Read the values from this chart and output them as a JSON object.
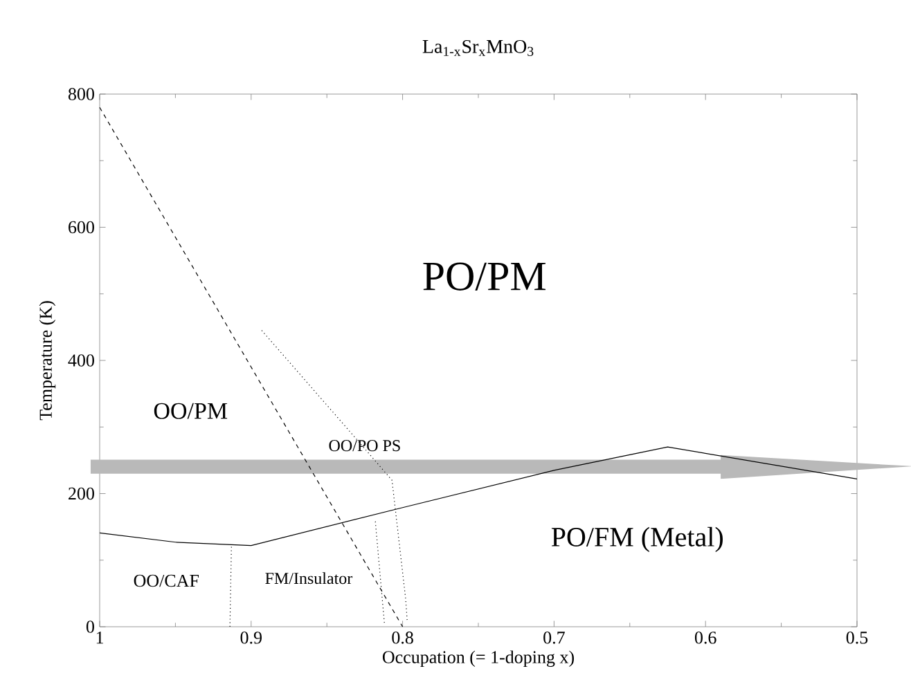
{
  "chart_data": {
    "type": "line",
    "title": "La$_{1-x}$Sr$_{x}$MnO$_{3}$",
    "xlabel": "Occupation (= 1-doping x)",
    "ylabel": "Temperature (K)",
    "xlim": [
      1,
      0.5
    ],
    "xticks": [
      1,
      0.9,
      0.8,
      0.7,
      0.6,
      0.5
    ],
    "ylim": [
      0,
      800
    ],
    "yticks": [
      0,
      200,
      400,
      600,
      800
    ],
    "marker": "none",
    "series": [
      {
        "color": "#000000",
        "line_style": "dashed",
        "x": [
          1,
          0.8
        ],
        "values": [
          780,
          0
        ]
      },
      {
        "color": "#000000",
        "line_style": "solid",
        "x": [
          1,
          0.95,
          0.9,
          0.8,
          0.7,
          0.625,
          0.5
        ],
        "values": [
          141,
          127,
          122,
          179,
          235,
          270,
          222
        ]
      },
      {
        "color": "#000000",
        "line_style": "dotted",
        "x": [
          0.914,
          0.913
        ],
        "values": [
          0,
          123
        ]
      },
      {
        "color": "#000000",
        "line_style": "dotted",
        "x": [
          0.893,
          0.834,
          0.807,
          0.798,
          0.797
        ],
        "values": [
          445,
          291,
          220,
          42,
          10
        ]
      },
      {
        "color": "#000000",
        "line_style": "dotted",
        "x": [
          0.818,
          0.812
        ],
        "values": [
          158,
          5
        ]
      }
    ],
    "annotations": [
      "PO/PM",
      "OO/PM",
      "OO/PO PS",
      "OO/CAF",
      "FM/Insulator",
      "PO/FM (Metal)"
    ]
  }
}
